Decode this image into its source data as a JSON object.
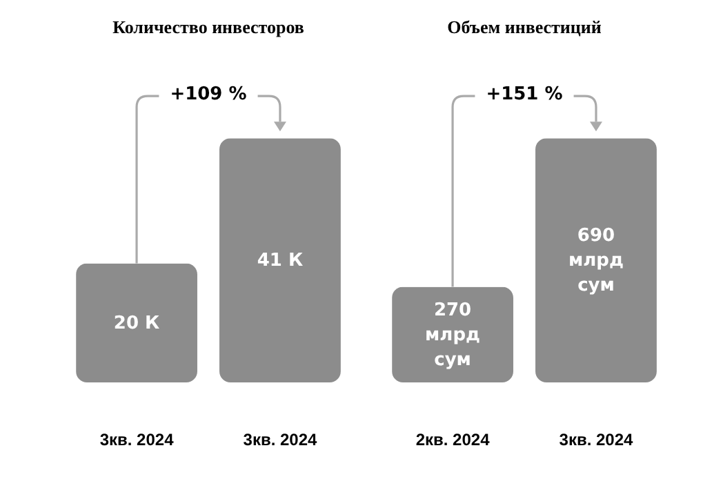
{
  "chart_data": [
    {
      "type": "bar",
      "title": "Количество инвесторов",
      "categories": [
        "3кв. 2024",
        "3кв. 2024"
      ],
      "values": [
        20,
        41
      ],
      "value_labels": [
        "20 К",
        "41 К"
      ],
      "color": "#8c8c8c",
      "annotations": [
        "+109 %"
      ]
    },
    {
      "type": "bar",
      "title": "Объем инвестиций",
      "categories": [
        "2кв. 2024",
        "3кв. 2024"
      ],
      "values": [
        270,
        690
      ],
      "value_labels": [
        "270\nмлрд\nсум",
        "690\nмлрд\nсум"
      ],
      "color": "#8c8c8c",
      "annotations": [
        "+151 %"
      ]
    }
  ]
}
